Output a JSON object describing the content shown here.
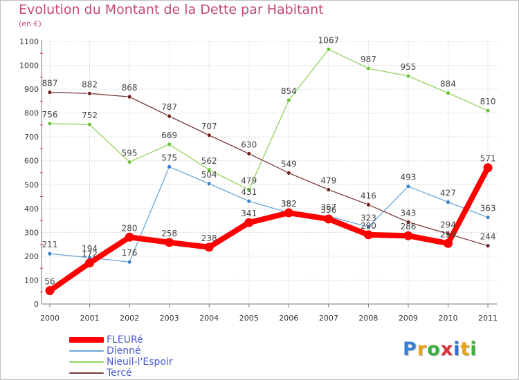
{
  "title": "Evolution du Montant de la Dette par Habitant",
  "unit_label": "(en €)",
  "logo": {
    "text": "Proxiti",
    "letter_colors": [
      "#3a7fd6",
      "#e8a21a",
      "#3fae3f",
      "#d6333b",
      "#2f6fc9",
      "#e8a21a",
      "#3fae3f"
    ]
  },
  "chart_data": {
    "type": "line",
    "categories": [
      "2000",
      "2001",
      "2002",
      "2003",
      "2004",
      "2005",
      "2006",
      "2007",
      "2008",
      "2009",
      "2010",
      "2011"
    ],
    "y_ticks": [
      0,
      100,
      200,
      300,
      400,
      500,
      600,
      700,
      800,
      900,
      1000,
      1100
    ],
    "ylim": [
      0,
      1100
    ],
    "grid": true,
    "legend_position": "bottom-left",
    "series": [
      {
        "name": "FLEURé",
        "color": "#ff0000",
        "marker_color": "#ff0000",
        "thick": true,
        "values": [
          56,
          172,
          280,
          258,
          238,
          341,
          382,
          356,
          290,
          286,
          254,
          571
        ]
      },
      {
        "name": "Dienné",
        "color": "#6aa6d8",
        "marker_color": "#3f7fc4",
        "thick": false,
        "values": [
          211,
          194,
          176,
          575,
          504,
          431,
          382,
          367,
          323,
          493,
          427,
          363
        ]
      },
      {
        "name": "Nieuil-l'Espoir",
        "color": "#8fd35a",
        "marker_color": "#6cc13a",
        "thick": false,
        "values": [
          756,
          752,
          595,
          669,
          562,
          479,
          854,
          1067,
          987,
          955,
          884,
          810
        ]
      },
      {
        "name": "Tercé",
        "color": "#7a3b3b",
        "marker_color": "#6b1f1f",
        "thick": false,
        "values": [
          887,
          882,
          868,
          787,
          707,
          630,
          549,
          479,
          416,
          343,
          294,
          244
        ]
      }
    ]
  }
}
